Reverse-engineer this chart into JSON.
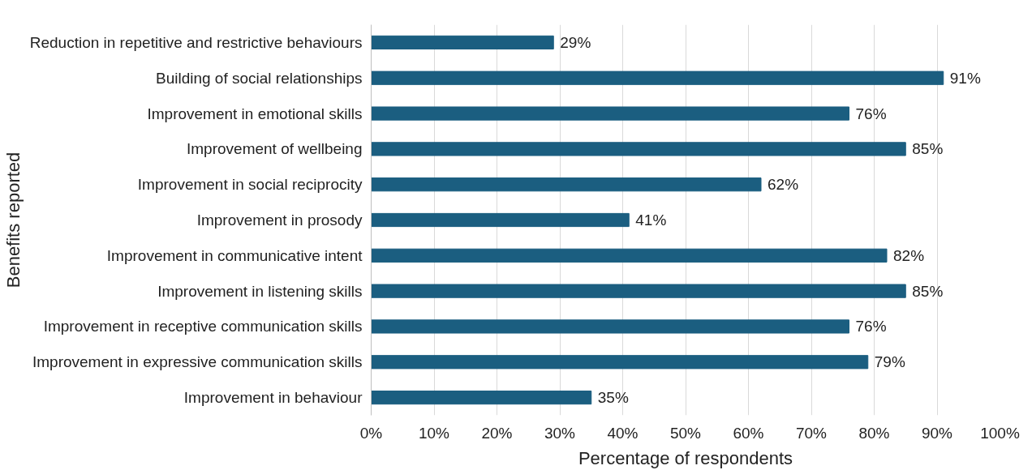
{
  "chart_data": {
    "type": "bar",
    "orientation": "horizontal",
    "xlabel": "Percentage of respondents",
    "ylabel": "Benefits reported",
    "categories": [
      "Reduction in repetitive and restrictive behaviours",
      "Building of social relationships",
      "Improvement in emotional skills",
      "Improvement of wellbeing",
      "Improvement in social reciprocity",
      "Improvement in prosody",
      "Improvement in communicative intent",
      "Improvement in listening skills",
      "Improvement in receptive communication skills",
      "Improvement in expressive communication skills",
      "Improvement in behaviour"
    ],
    "values": [
      29,
      91,
      76,
      85,
      62,
      41,
      82,
      85,
      76,
      79,
      35
    ],
    "value_labels": [
      "29%",
      "91%",
      "76%",
      "85%",
      "62%",
      "41%",
      "82%",
      "85%",
      "76%",
      "79%",
      "35%"
    ],
    "color": "#1b5e80",
    "xlim": [
      0,
      100
    ],
    "xticks": [
      {
        "value": 0,
        "label": "0%"
      },
      {
        "value": 10,
        "label": "10%"
      },
      {
        "value": 20,
        "label": "20%"
      },
      {
        "value": 30,
        "label": "30%"
      },
      {
        "value": 40,
        "label": "40%"
      },
      {
        "value": 50,
        "label": "50%"
      },
      {
        "value": 60,
        "label": "60%"
      },
      {
        "value": 70,
        "label": "70%"
      },
      {
        "value": 80,
        "label": "80%"
      },
      {
        "value": 90,
        "label": "90%"
      },
      {
        "value": 100,
        "label": "100%"
      }
    ],
    "grid": "x"
  }
}
